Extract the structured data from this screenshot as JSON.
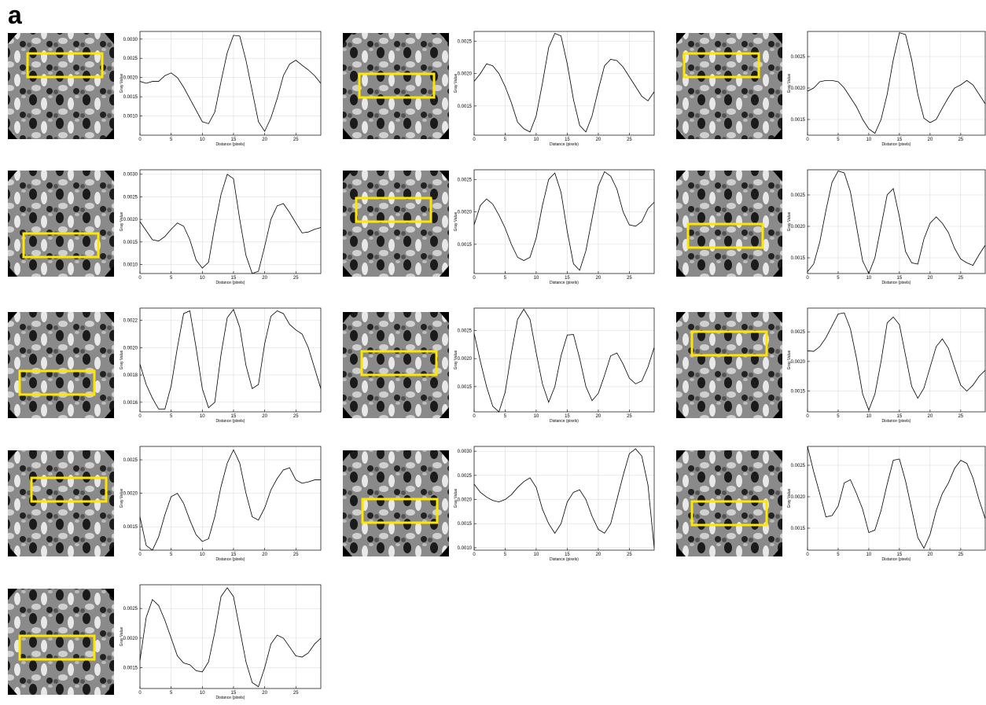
{
  "panel_label": "a",
  "chart_data": [
    {
      "type": "line",
      "xlabel": "Distance (pixels)",
      "ylabel": "Gray Value",
      "color": "#000000",
      "grid": true,
      "xlim": [
        0,
        29
      ],
      "xticks": [
        0,
        5,
        10,
        15,
        20,
        25
      ],
      "ylim": [
        0.0005,
        0.0032
      ],
      "yticks": [
        {
          "value": 0.001,
          "label": "0.0010"
        },
        0.0015,
        {
          "value": 0.002,
          "label": "0.0020"
        },
        0.0025,
        {
          "value": 0.003,
          "label": "0.0030"
        }
      ],
      "x": [
        0,
        1,
        2,
        3,
        4,
        5,
        6,
        7,
        8,
        9,
        10,
        11,
        12,
        13,
        14,
        15,
        16,
        17,
        18,
        19,
        20,
        21,
        22,
        23,
        24,
        25,
        26,
        27,
        28,
        29
      ],
      "values": [
        0.0019,
        0.00185,
        0.0019,
        0.0019,
        0.00205,
        0.00212,
        0.002,
        0.00175,
        0.00145,
        0.00115,
        0.00085,
        0.0008,
        0.0011,
        0.0019,
        0.00265,
        0.0031,
        0.00308,
        0.00245,
        0.00165,
        0.00085,
        0.0006,
        0.00095,
        0.00145,
        0.00205,
        0.00235,
        0.00245,
        0.00232,
        0.0022,
        0.00205,
        0.00185
      ]
    },
    {
      "type": "line",
      "xlabel": "Distance (pixels)",
      "ylabel": "Gray Value",
      "color": "#000000",
      "grid": true,
      "xlim": [
        0,
        29
      ],
      "xticks": [
        0,
        5,
        10,
        15,
        20,
        25
      ],
      "ylim": [
        0.00105,
        0.00265
      ],
      "yticks": [
        0.0015,
        {
          "value": 0.002,
          "label": "0.0020"
        },
        0.0025
      ],
      "x": [
        0,
        1,
        2,
        3,
        4,
        5,
        6,
        7,
        8,
        9,
        10,
        11,
        12,
        13,
        14,
        15,
        16,
        17,
        18,
        19,
        20,
        21,
        22,
        23,
        24,
        25,
        26,
        27,
        28,
        29
      ],
      "values": [
        0.00188,
        0.002,
        0.00215,
        0.00212,
        0.002,
        0.0018,
        0.00155,
        0.00125,
        0.00115,
        0.0011,
        0.00135,
        0.00185,
        0.0024,
        0.00262,
        0.00258,
        0.00215,
        0.0016,
        0.0012,
        0.0011,
        0.00135,
        0.00175,
        0.00212,
        0.00222,
        0.0022,
        0.0021,
        0.00195,
        0.0018,
        0.00165,
        0.00158,
        0.00172
      ]
    },
    {
      "type": "line",
      "xlabel": "Distance (pixels)",
      "ylabel": "Gray Value",
      "color": "#000000",
      "grid": true,
      "xlim": [
        0,
        29
      ],
      "xticks": [
        0,
        5,
        10,
        15,
        20,
        25
      ],
      "ylim": [
        0.00125,
        0.0029
      ],
      "yticks": [
        0.0015,
        {
          "value": 0.002,
          "label": "0.0020"
        },
        0.0025
      ],
      "x": [
        0,
        1,
        2,
        3,
        4,
        5,
        6,
        7,
        8,
        9,
        10,
        11,
        12,
        13,
        14,
        15,
        16,
        17,
        18,
        19,
        20,
        21,
        22,
        23,
        24,
        25,
        26,
        27,
        28,
        29
      ],
      "values": [
        0.00195,
        0.002,
        0.0021,
        0.00212,
        0.00212,
        0.0021,
        0.002,
        0.00185,
        0.0017,
        0.0015,
        0.00135,
        0.00128,
        0.0015,
        0.0019,
        0.00245,
        0.00288,
        0.00285,
        0.00245,
        0.0019,
        0.00152,
        0.00145,
        0.0015,
        0.00168,
        0.00185,
        0.002,
        0.00205,
        0.00212,
        0.00205,
        0.0019,
        0.00175
      ]
    },
    {
      "type": "line",
      "xlabel": "Distance (pixels)",
      "ylabel": "Gray Value",
      "color": "#000000",
      "grid": true,
      "xlim": [
        0,
        29
      ],
      "xticks": [
        0,
        5,
        10,
        15,
        20,
        25
      ],
      "ylim": [
        0.0008,
        0.0031
      ],
      "yticks": [
        {
          "value": 0.001,
          "label": "0.0010"
        },
        0.0015,
        {
          "value": 0.002,
          "label": "0.0020"
        },
        0.0025,
        {
          "value": 0.003,
          "label": "0.0030"
        }
      ],
      "x": [
        0,
        1,
        2,
        3,
        4,
        5,
        6,
        7,
        8,
        9,
        10,
        11,
        12,
        13,
        14,
        15,
        16,
        17,
        18,
        19,
        20,
        21,
        22,
        23,
        24,
        25,
        26,
        27,
        28,
        29
      ],
      "values": [
        0.00195,
        0.00175,
        0.00155,
        0.00152,
        0.00162,
        0.00178,
        0.00192,
        0.00185,
        0.00155,
        0.0011,
        0.00092,
        0.00105,
        0.00185,
        0.00255,
        0.003,
        0.0029,
        0.002,
        0.0012,
        0.0008,
        0.00085,
        0.0014,
        0.002,
        0.0023,
        0.00235,
        0.00215,
        0.00192,
        0.0017,
        0.00172,
        0.00178,
        0.00182
      ]
    },
    {
      "type": "line",
      "xlabel": "Distance (pixels)",
      "ylabel": "Gray Value",
      "color": "#000000",
      "grid": true,
      "xlim": [
        0,
        29
      ],
      "xticks": [
        0,
        5,
        10,
        15,
        20,
        25
      ],
      "ylim": [
        0.00105,
        0.00265
      ],
      "yticks": [
        0.0015,
        {
          "value": 0.002,
          "label": "0.0020"
        },
        0.0025
      ],
      "x": [
        0,
        1,
        2,
        3,
        4,
        5,
        6,
        7,
        8,
        9,
        10,
        11,
        12,
        13,
        14,
        15,
        16,
        17,
        18,
        19,
        20,
        21,
        22,
        23,
        24,
        25,
        26,
        27,
        28,
        29
      ],
      "values": [
        0.0018,
        0.0021,
        0.0022,
        0.00212,
        0.00195,
        0.00175,
        0.0015,
        0.0013,
        0.00125,
        0.0013,
        0.0016,
        0.0021,
        0.0025,
        0.0026,
        0.0023,
        0.0017,
        0.0012,
        0.0011,
        0.0014,
        0.0019,
        0.0024,
        0.00262,
        0.00255,
        0.00235,
        0.002,
        0.0018,
        0.00178,
        0.00185,
        0.00205,
        0.00215
      ]
    },
    {
      "type": "line",
      "xlabel": "Distance (pixels)",
      "ylabel": "Gray Value",
      "color": "#000000",
      "grid": true,
      "xlim": [
        0,
        29
      ],
      "xticks": [
        0,
        5,
        10,
        15,
        20,
        25
      ],
      "ylim": [
        0.00125,
        0.0029
      ],
      "yticks": [
        0.0015,
        {
          "value": 0.002,
          "label": "0.0020"
        },
        0.0025
      ],
      "x": [
        0,
        1,
        2,
        3,
        4,
        5,
        6,
        7,
        8,
        9,
        10,
        11,
        12,
        13,
        14,
        15,
        16,
        17,
        18,
        19,
        20,
        21,
        22,
        23,
        24,
        25,
        26,
        27,
        28,
        29
      ],
      "values": [
        0.00128,
        0.0014,
        0.00175,
        0.00225,
        0.0027,
        0.00288,
        0.00285,
        0.00255,
        0.002,
        0.00145,
        0.00125,
        0.0015,
        0.002,
        0.0025,
        0.0026,
        0.00215,
        0.0016,
        0.00142,
        0.0014,
        0.0018,
        0.00205,
        0.00215,
        0.00205,
        0.0019,
        0.00165,
        0.00148,
        0.00142,
        0.00138,
        0.00155,
        0.0017
      ]
    },
    {
      "type": "line",
      "xlabel": "Distance (pixels)",
      "ylabel": "Gray Value",
      "color": "#000000",
      "grid": true,
      "xlim": [
        0,
        29
      ],
      "xticks": [
        0,
        5,
        10,
        15,
        20,
        25
      ],
      "ylim": [
        0.00153,
        0.00229
      ],
      "yticks": [
        0.0016,
        0.0018,
        {
          "value": 0.002,
          "label": "0.0020"
        },
        0.0022
      ],
      "x": [
        0,
        1,
        2,
        3,
        4,
        5,
        6,
        7,
        8,
        9,
        10,
        11,
        12,
        13,
        14,
        15,
        16,
        17,
        18,
        19,
        20,
        21,
        22,
        23,
        24,
        25,
        26,
        27,
        28,
        29
      ],
      "values": [
        0.00188,
        0.00173,
        0.00163,
        0.00155,
        0.00155,
        0.00172,
        0.002,
        0.00225,
        0.00227,
        0.002,
        0.0017,
        0.00156,
        0.0016,
        0.00195,
        0.00222,
        0.00228,
        0.00215,
        0.00187,
        0.0017,
        0.00173,
        0.00203,
        0.00223,
        0.00227,
        0.00225,
        0.00217,
        0.00213,
        0.0021,
        0.002,
        0.00185,
        0.0017
      ]
    },
    {
      "type": "line",
      "xlabel": "Distance (pixels)",
      "ylabel": "Gray Value",
      "color": "#000000",
      "grid": true,
      "xlim": [
        0,
        29
      ],
      "xticks": [
        0,
        5,
        10,
        15,
        20,
        25
      ],
      "ylim": [
        0.00105,
        0.0029
      ],
      "yticks": [
        0.0015,
        {
          "value": 0.002,
          "label": "0.0020"
        },
        0.0025
      ],
      "x": [
        0,
        1,
        2,
        3,
        4,
        5,
        6,
        7,
        8,
        9,
        10,
        11,
        12,
        13,
        14,
        15,
        16,
        17,
        18,
        19,
        20,
        21,
        22,
        23,
        24,
        25,
        26,
        27,
        28,
        29
      ],
      "values": [
        0.00245,
        0.00195,
        0.0015,
        0.00115,
        0.00105,
        0.0014,
        0.0021,
        0.0027,
        0.00288,
        0.0027,
        0.0021,
        0.00155,
        0.00122,
        0.0015,
        0.00205,
        0.00242,
        0.00243,
        0.002,
        0.0015,
        0.00125,
        0.00138,
        0.0017,
        0.00205,
        0.0021,
        0.0019,
        0.00165,
        0.00155,
        0.0016,
        0.00185,
        0.0022
      ]
    },
    {
      "type": "line",
      "xlabel": "Distance (pixels)",
      "ylabel": "Gray Value",
      "color": "#000000",
      "grid": true,
      "xlim": [
        0,
        29
      ],
      "xticks": [
        0,
        5,
        10,
        15,
        20,
        25
      ],
      "ylim": [
        0.00115,
        0.0029
      ],
      "yticks": [
        0.0015,
        {
          "value": 0.002,
          "label": "0.0020"
        },
        0.0025
      ],
      "x": [
        0,
        1,
        2,
        3,
        4,
        5,
        6,
        7,
        8,
        9,
        10,
        11,
        12,
        13,
        14,
        15,
        16,
        17,
        18,
        19,
        20,
        21,
        22,
        23,
        24,
        25,
        26,
        27,
        28,
        29
      ],
      "values": [
        0.00218,
        0.00217,
        0.00225,
        0.0024,
        0.0026,
        0.0028,
        0.00282,
        0.00255,
        0.00205,
        0.00145,
        0.00118,
        0.00145,
        0.002,
        0.00265,
        0.00275,
        0.00262,
        0.0021,
        0.00158,
        0.00138,
        0.00155,
        0.0019,
        0.00225,
        0.00238,
        0.00222,
        0.0019,
        0.0016,
        0.0015,
        0.0016,
        0.00175,
        0.00185
      ]
    },
    {
      "type": "line",
      "xlabel": "Distance (pixels)",
      "ylabel": "Gray Value",
      "color": "#000000",
      "grid": true,
      "xlim": [
        0,
        29
      ],
      "xticks": [
        0,
        5,
        10,
        15,
        20,
        25
      ],
      "ylim": [
        0.00115,
        0.0027
      ],
      "yticks": [
        0.0015,
        {
          "value": 0.002,
          "label": "0.0020"
        },
        0.0025
      ],
      "x": [
        0,
        1,
        2,
        3,
        4,
        5,
        6,
        7,
        8,
        9,
        10,
        11,
        12,
        13,
        14,
        15,
        16,
        17,
        18,
        19,
        20,
        21,
        22,
        23,
        24,
        25,
        26,
        27,
        28,
        29
      ],
      "values": [
        0.00165,
        0.00122,
        0.00115,
        0.00135,
        0.00168,
        0.00195,
        0.002,
        0.00185,
        0.0016,
        0.00138,
        0.00128,
        0.00132,
        0.00165,
        0.0021,
        0.00245,
        0.00265,
        0.00245,
        0.002,
        0.00165,
        0.0016,
        0.00178,
        0.00205,
        0.00222,
        0.00235,
        0.00238,
        0.0022,
        0.00215,
        0.00217,
        0.0022,
        0.0022
      ]
    },
    {
      "type": "line",
      "xlabel": "Distance (pixels)",
      "ylabel": "Gray Value",
      "color": "#000000",
      "grid": true,
      "xlim": [
        0,
        29
      ],
      "xticks": [
        0,
        5,
        10,
        15,
        20,
        25
      ],
      "ylim": [
        0.00095,
        0.0031
      ],
      "yticks": [
        {
          "value": 0.001,
          "label": "0.0010"
        },
        0.0015,
        {
          "value": 0.002,
          "label": "0.0020"
        },
        0.0025,
        {
          "value": 0.003,
          "label": "0.0030"
        }
      ],
      "x": [
        0,
        1,
        2,
        3,
        4,
        5,
        6,
        7,
        8,
        9,
        10,
        11,
        12,
        13,
        14,
        15,
        16,
        17,
        18,
        19,
        20,
        21,
        22,
        23,
        24,
        25,
        26,
        27,
        28,
        29
      ],
      "values": [
        0.00232,
        0.00215,
        0.00205,
        0.00198,
        0.00195,
        0.002,
        0.0021,
        0.00225,
        0.00237,
        0.00245,
        0.00225,
        0.0018,
        0.0015,
        0.0013,
        0.0015,
        0.00195,
        0.00215,
        0.0022,
        0.002,
        0.00165,
        0.00138,
        0.0013,
        0.0015,
        0.002,
        0.0025,
        0.00295,
        0.00305,
        0.0029,
        0.0023,
        0.001
      ]
    },
    {
      "type": "line",
      "xlabel": "Distance (pixels)",
      "ylabel": "Gray Value",
      "color": "#000000",
      "grid": true,
      "xlim": [
        0,
        29
      ],
      "xticks": [
        0,
        5,
        10,
        15,
        20,
        25
      ],
      "ylim": [
        0.00115,
        0.0028
      ],
      "yticks": [
        0.0015,
        {
          "value": 0.002,
          "label": "0.0020"
        },
        0.0025
      ],
      "x": [
        0,
        1,
        2,
        3,
        4,
        5,
        6,
        7,
        8,
        9,
        10,
        11,
        12,
        13,
        14,
        15,
        16,
        17,
        18,
        19,
        20,
        21,
        22,
        23,
        24,
        25,
        26,
        27,
        28,
        29
      ],
      "values": [
        0.0028,
        0.0024,
        0.00205,
        0.00168,
        0.0017,
        0.00185,
        0.00222,
        0.00227,
        0.00205,
        0.0018,
        0.00143,
        0.00147,
        0.00178,
        0.0022,
        0.00258,
        0.0026,
        0.00225,
        0.0018,
        0.00135,
        0.00118,
        0.0014,
        0.00178,
        0.00205,
        0.00222,
        0.00245,
        0.00258,
        0.00253,
        0.0023,
        0.00195,
        0.00165
      ]
    },
    {
      "type": "line",
      "xlabel": "Distance (pixels)",
      "ylabel": "Gray Value",
      "color": "#000000",
      "grid": true,
      "xlim": [
        0,
        29
      ],
      "xticks": [
        0,
        5,
        10,
        15,
        20,
        25
      ],
      "ylim": [
        0.00115,
        0.0029
      ],
      "yticks": [
        0.0015,
        {
          "value": 0.002,
          "label": "0.0020"
        },
        0.0025
      ],
      "x": [
        0,
        1,
        2,
        3,
        4,
        5,
        6,
        7,
        8,
        9,
        10,
        11,
        12,
        13,
        14,
        15,
        16,
        17,
        18,
        19,
        20,
        21,
        22,
        23,
        24,
        25,
        26,
        27,
        28,
        29
      ],
      "values": [
        0.00162,
        0.00235,
        0.00265,
        0.00255,
        0.0023,
        0.002,
        0.0017,
        0.00158,
        0.00155,
        0.00145,
        0.00143,
        0.0016,
        0.0021,
        0.0027,
        0.00285,
        0.0027,
        0.00215,
        0.0016,
        0.00125,
        0.00118,
        0.0015,
        0.0019,
        0.00205,
        0.002,
        0.00185,
        0.0017,
        0.00168,
        0.00175,
        0.0019,
        0.002
      ]
    }
  ]
}
